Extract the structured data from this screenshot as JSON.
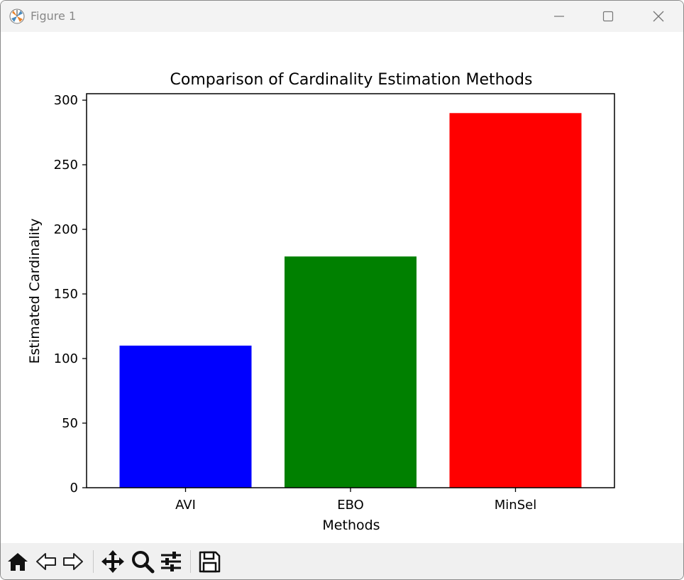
{
  "window": {
    "title": "Figure 1"
  },
  "toolbar": {
    "items": [
      "home-icon",
      "back-icon",
      "forward-icon",
      "pan-icon",
      "zoom-icon",
      "configure-icon",
      "save-icon"
    ]
  },
  "colors": {
    "AVI": "#0000ff",
    "EBO": "#008000",
    "MinSel": "#ff0000"
  },
  "chart_data": {
    "type": "bar",
    "title": "Comparison of Cardinality Estimation Methods",
    "xlabel": "Methods",
    "ylabel": "Estimated Cardinality",
    "categories": [
      "AVI",
      "EBO",
      "MinSel"
    ],
    "values": [
      110,
      179,
      290
    ],
    "bar_colors": [
      "#0000ff",
      "#008000",
      "#ff0000"
    ],
    "ylim": [
      0,
      305
    ],
    "yticks": [
      0,
      50,
      100,
      150,
      200,
      250,
      300
    ],
    "grid": false,
    "legend": "none"
  }
}
